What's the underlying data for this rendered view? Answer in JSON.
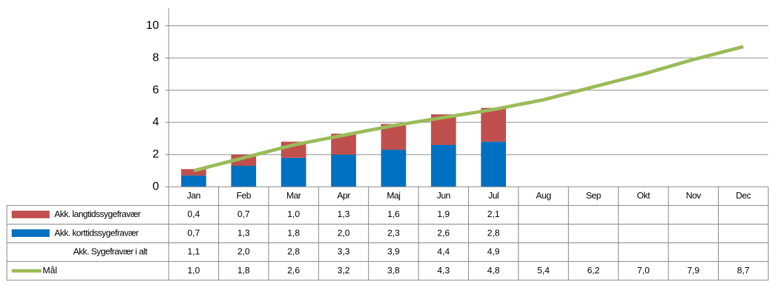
{
  "chart_data": {
    "type": "bar",
    "categories": [
      "Jan",
      "Feb",
      "Mar",
      "Apr",
      "Maj",
      "Jun",
      "Jul",
      "Aug",
      "Sep",
      "Okt",
      "Nov",
      "Dec"
    ],
    "series": [
      {
        "name": "Akk. langtidssygefravær",
        "type": "bar",
        "color": "#c0504d",
        "values": [
          0.4,
          0.7,
          1.0,
          1.3,
          1.6,
          1.9,
          2.1,
          null,
          null,
          null,
          null,
          null
        ],
        "value_labels": [
          "0,4",
          "0,7",
          "1,0",
          "1,3",
          "1,6",
          "1,9",
          "2,1",
          null,
          null,
          null,
          null,
          null
        ]
      },
      {
        "name": "Akk. korttidssygefravær",
        "type": "bar",
        "color": "#0070c0",
        "values": [
          0.7,
          1.3,
          1.8,
          2.0,
          2.3,
          2.6,
          2.8,
          null,
          null,
          null,
          null,
          null
        ],
        "value_labels": [
          "0,7",
          "1,3",
          "1,8",
          "2,0",
          "2,3",
          "2,6",
          "2,8",
          null,
          null,
          null,
          null,
          null
        ]
      },
      {
        "name": "Akk. Sygefravær i alt",
        "values": [
          1.1,
          2.0,
          2.8,
          3.3,
          3.9,
          4.4,
          4.9,
          null,
          null,
          null,
          null,
          null
        ],
        "value_labels": [
          "1,1",
          "2,0",
          "2,8",
          "3,3",
          "3,9",
          "4,4",
          "4,9",
          null,
          null,
          null,
          null,
          null
        ]
      },
      {
        "name": "Mål",
        "type": "line",
        "color": "#9bbb59",
        "values": [
          1.0,
          1.8,
          2.6,
          3.2,
          3.8,
          4.3,
          4.8,
          5.4,
          6.2,
          7.0,
          7.9,
          8.7
        ],
        "value_labels": [
          "1,0",
          "1,8",
          "2,6",
          "3,2",
          "3,8",
          "4,3",
          "4,8",
          "5,4",
          "6,2",
          "7,0",
          "7,9",
          "8,7"
        ]
      }
    ],
    "ylim": [
      0,
      11
    ],
    "yticks": [
      0,
      2,
      4,
      6,
      8,
      10
    ],
    "grid": true
  }
}
